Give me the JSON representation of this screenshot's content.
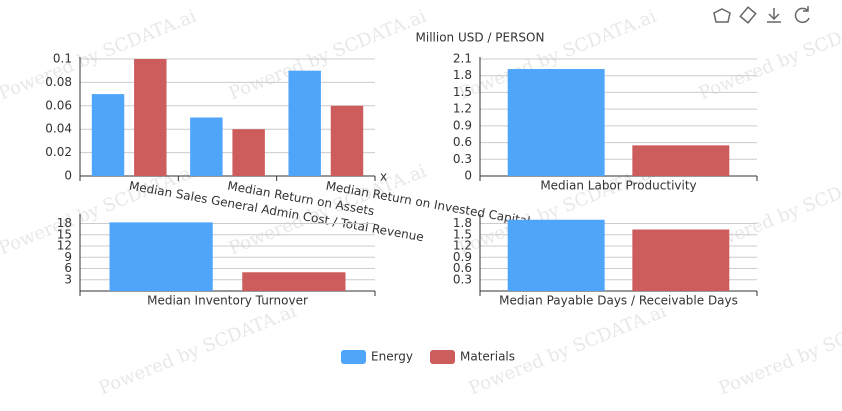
{
  "watermark": "Powered by SCDATA.ai",
  "chart_data": [
    {
      "type": "bar",
      "xlabel": "x",
      "categories": [
        "Median Sales General Admin Cost / Total Revenue",
        "Median Return on Assets",
        "Median Return on Invested Capital"
      ],
      "series": [
        {
          "name": "Energy",
          "color": "#4ea5f9",
          "values": [
            0.07,
            0.05,
            0.09
          ]
        },
        {
          "name": "Materials",
          "color": "#cd5c5c",
          "values": [
            0.1,
            0.04,
            0.06
          ]
        }
      ],
      "ylim": [
        0,
        0.1
      ],
      "yticks": [
        0,
        0.02,
        0.04,
        0.06,
        0.08,
        0.1
      ],
      "grid": true
    },
    {
      "type": "bar",
      "ylabel": "Million USD / PERSON",
      "categories": [
        "Median Labor Productivity"
      ],
      "series": [
        {
          "name": "Energy",
          "color": "#4ea5f9",
          "values": [
            1.92
          ]
        },
        {
          "name": "Materials",
          "color": "#cd5c5c",
          "values": [
            0.55
          ]
        }
      ],
      "ylim": [
        0,
        2.1
      ],
      "yticks": [
        0,
        0.3,
        0.6,
        0.9,
        1.2,
        1.5,
        1.8,
        2.1
      ],
      "grid": true
    },
    {
      "type": "bar",
      "categories": [
        "Median Inventory Turnover"
      ],
      "series": [
        {
          "name": "Energy",
          "color": "#4ea5f9",
          "values": [
            18.3
          ]
        },
        {
          "name": "Materials",
          "color": "#cd5c5c",
          "values": [
            5.0
          ]
        }
      ],
      "ylim": [
        0,
        20
      ],
      "yticks": [
        3,
        6,
        9,
        12,
        15,
        18
      ],
      "grid": true
    },
    {
      "type": "bar",
      "categories": [
        "Median Payable Days / Receivable Days"
      ],
      "series": [
        {
          "name": "Energy",
          "color": "#4ea5f9",
          "values": [
            1.9
          ]
        },
        {
          "name": "Materials",
          "color": "#cd5c5c",
          "values": [
            1.64
          ]
        }
      ],
      "ylim": [
        0,
        2.0
      ],
      "yticks": [
        0.3,
        0.6,
        0.9,
        1.2,
        1.5,
        1.8
      ],
      "grid": true
    }
  ]
}
